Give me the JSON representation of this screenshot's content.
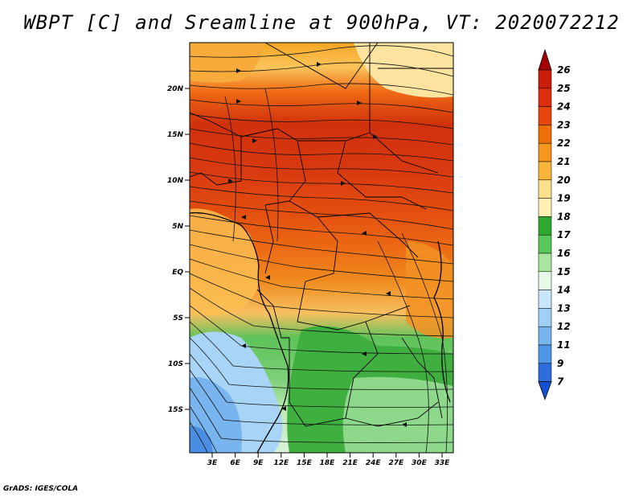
{
  "title": "WBPT [C] and Sreamline at 900hPa, VT: 2020072212",
  "footer": "GrADS: IGES/COLA",
  "y_ticks": [
    "20N",
    "15N",
    "10N",
    "5N",
    "EQ",
    "5S",
    "10S",
    "15S"
  ],
  "x_ticks": [
    "3E",
    "6E",
    "9E",
    "12E",
    "15E",
    "18E",
    "21E",
    "24E",
    "27E",
    "30E",
    "33E"
  ],
  "colorbar": {
    "labels": [
      "26",
      "25",
      "24",
      "23",
      "22",
      "21",
      "20",
      "19",
      "18",
      "17",
      "16",
      "15",
      "14",
      "13",
      "12",
      "11",
      "9",
      "7"
    ],
    "colors": [
      "#a50000",
      "#c81e0a",
      "#dc2d0f",
      "#e8460f",
      "#f06e0a",
      "#f5961e",
      "#fab43c",
      "#fde08c",
      "#fff0b4",
      "#2fa82f",
      "#5ac85a",
      "#a8e6a0",
      "#e6f8ea",
      "#c8e6fa",
      "#a0d0f5",
      "#78b4ee",
      "#5096e6",
      "#2d6edc",
      "#1450d2"
    ]
  }
}
